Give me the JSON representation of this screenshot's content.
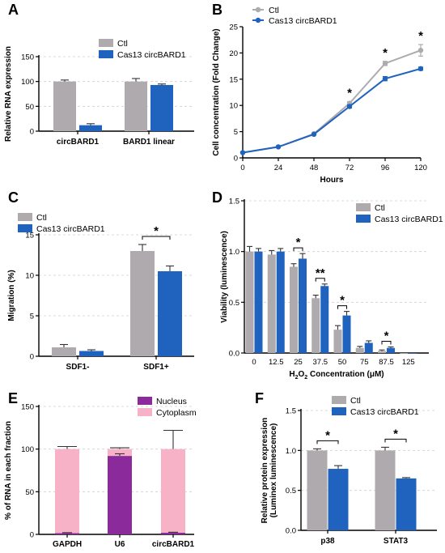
{
  "colors": {
    "ctl": "#aeaaad",
    "cas13": "#1f63be",
    "nucleus": "#8b2a9a",
    "cytoplasm": "#f7b2c8"
  },
  "chart_data": [
    {
      "panel": "A",
      "type": "bar",
      "categories": [
        "circBARD1",
        "BARD1 linear"
      ],
      "series": [
        {
          "name": "Ctl",
          "values": [
            100,
            100
          ],
          "err": [
            3,
            6
          ]
        },
        {
          "name": "Cas13 circBARD1",
          "values": [
            12,
            93
          ],
          "err": [
            3,
            2
          ]
        }
      ],
      "ylabel": "Relative RNA expression",
      "ylim": [
        0,
        150
      ],
      "yticks": [
        0,
        50,
        100,
        150
      ],
      "grid": true,
      "legend": "top-left"
    },
    {
      "panel": "B",
      "type": "line",
      "x": [
        0,
        24,
        48,
        72,
        96,
        120
      ],
      "series": [
        {
          "name": "Ctl",
          "values": [
            1,
            2.1,
            4.6,
            10.4,
            18,
            20.5
          ],
          "err": [
            0,
            0,
            0,
            0.3,
            0.4,
            1.1
          ]
        },
        {
          "name": "Cas13 circBARD1",
          "values": [
            1,
            2.1,
            4.5,
            9.8,
            15.1,
            17
          ],
          "err": [
            0,
            0,
            0,
            0.3,
            0.4,
            0.3
          ]
        }
      ],
      "xlabel": "Hours",
      "ylabel": "Cell concentration (Fold Change)",
      "xlim": [
        0,
        120
      ],
      "ylim": [
        0,
        25
      ],
      "xticks": [
        0,
        24,
        48,
        72,
        96,
        120
      ],
      "yticks": [
        0,
        5,
        10,
        15,
        20,
        25
      ],
      "annotations": [
        {
          "x": 72,
          "text": "*"
        },
        {
          "x": 96,
          "text": "*"
        },
        {
          "x": 120,
          "text": "*"
        }
      ],
      "grid": false,
      "legend": "top-left"
    },
    {
      "panel": "C",
      "type": "bar",
      "categories": [
        "SDF1-",
        "SDF1+"
      ],
      "series": [
        {
          "name": "Ctl",
          "values": [
            1.1,
            13
          ],
          "err": [
            0.35,
            0.8
          ]
        },
        {
          "name": "Cas13 circBARD1",
          "values": [
            0.65,
            10.5
          ],
          "err": [
            0.15,
            0.65
          ]
        }
      ],
      "ylabel": "Migration (%)",
      "ylim": [
        0,
        15
      ],
      "yticks": [
        0,
        5,
        10,
        15
      ],
      "annotations": [
        {
          "category": "SDF1+",
          "text": "*"
        }
      ],
      "grid": true,
      "legend": "top-left"
    },
    {
      "panel": "D",
      "type": "bar",
      "categories": [
        "0",
        "12.5",
        "25",
        "37.5",
        "50",
        "75",
        "87.5",
        "125"
      ],
      "series": [
        {
          "name": "Ctl",
          "values": [
            1.0,
            0.97,
            0.85,
            0.54,
            0.23,
            0.05,
            0.02,
            0.0
          ],
          "err": [
            0.05,
            0.04,
            0.03,
            0.03,
            0.04,
            0.015,
            0.01,
            0
          ]
        },
        {
          "name": "Cas13 circBARD1",
          "values": [
            1.0,
            1.0,
            0.93,
            0.66,
            0.37,
            0.1,
            0.05,
            0.0
          ],
          "err": [
            0.03,
            0.03,
            0.05,
            0.02,
            0.04,
            0.02,
            0.01,
            0
          ]
        }
      ],
      "xlabel_parts": [
        "H",
        "2",
        "O",
        "2",
        " Concentration (μM)"
      ],
      "ylabel": "Viability (luminescence)",
      "ylim": [
        0,
        1.5
      ],
      "yticks": [
        "0.0",
        "0.5",
        "1.0",
        "1.5"
      ],
      "annotations": [
        {
          "category": "25",
          "text": "*"
        },
        {
          "category": "37.5",
          "text": "**"
        },
        {
          "category": "50",
          "text": "*"
        },
        {
          "category": "87.5",
          "text": "*"
        }
      ],
      "grid": true,
      "legend": "top-right"
    },
    {
      "panel": "E",
      "type": "bar",
      "stacked": true,
      "categories": [
        "GAPDH",
        "U6",
        "circBARD1"
      ],
      "series": [
        {
          "name": "Nucleus",
          "values": [
            1.5,
            92,
            2
          ],
          "err": [
            0.5,
            2.5,
            0.5
          ]
        },
        {
          "name": "Cytoplasm",
          "values": [
            98.5,
            8,
            98
          ],
          "err": [
            3,
            1.5,
            22
          ]
        }
      ],
      "ylabel": "% of RNA in each fraction",
      "ylim": [
        0,
        150
      ],
      "yticks": [
        0,
        50,
        100,
        150
      ],
      "grid": true,
      "legend": "top-right"
    },
    {
      "panel": "F",
      "type": "bar",
      "categories": [
        "p38",
        "STAT3"
      ],
      "series": [
        {
          "name": "Ctl",
          "values": [
            1.0,
            1.0
          ],
          "err": [
            0.02,
            0.04
          ]
        },
        {
          "name": "Cas13 circBARD1",
          "values": [
            0.77,
            0.65
          ],
          "err": [
            0.04,
            0.01
          ]
        }
      ],
      "ylabel_lines": [
        "Relative protein expression",
        "(Luminex luminescence)"
      ],
      "ylim": [
        0,
        1.5
      ],
      "yticks": [
        "0.0",
        "0.5",
        "1.0",
        "1.5"
      ],
      "annotations": [
        {
          "category": "p38",
          "text": "*"
        },
        {
          "category": "STAT3",
          "text": "*"
        }
      ],
      "grid": true,
      "legend": "top-right"
    }
  ]
}
